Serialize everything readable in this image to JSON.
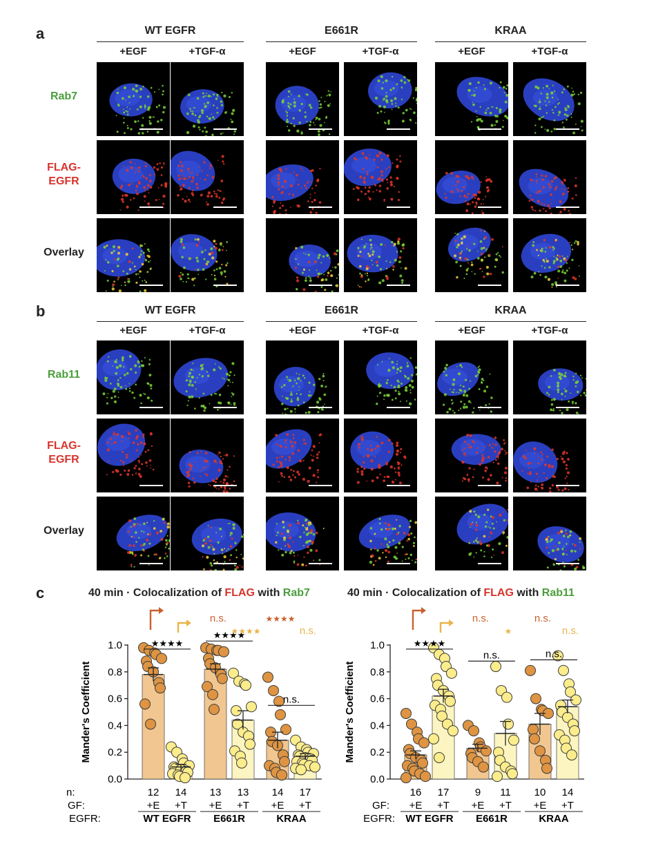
{
  "panels": [
    {
      "letter": "a",
      "groups": [
        "WT EGFR",
        "E661R",
        "KRAA"
      ],
      "conditions": [
        "+EGF",
        "+TGF-α"
      ],
      "rows": [
        {
          "label": "Rab7",
          "color": "#4a9e3b"
        },
        {
          "label": "FLAG-EGFR",
          "color": "#d6342c"
        },
        {
          "label": "Overlay",
          "color": "#222222"
        }
      ]
    },
    {
      "letter": "b",
      "groups": [
        "WT EGFR",
        "E661R",
        "KRAA"
      ],
      "conditions": [
        "+EGF",
        "+TGF-α"
      ],
      "rows": [
        {
          "label": "Rab11",
          "color": "#4a9e3b"
        },
        {
          "label": "FLAG-EGFR",
          "color": "#d6342c"
        },
        {
          "label": "Overlay",
          "color": "#222222"
        }
      ]
    }
  ],
  "panel_c": {
    "letter": "c",
    "row_labels": {
      "n": "n:",
      "gf": "GF:",
      "egfr": "EGFR:"
    }
  },
  "chart_data": [
    {
      "type": "bar",
      "title": {
        "prefix": "40 min · Colocalization of ",
        "flag": "FLAG",
        "mid": " with ",
        "rab": "Rab7"
      },
      "ylabel": "Mander's Coefficient",
      "ylim": [
        0,
        1.0
      ],
      "yticks": [
        "0.0",
        "0.2",
        "0.4",
        "0.6",
        "0.8",
        "1.0"
      ],
      "groups": [
        "WT EGFR",
        "E661R",
        "KRAA"
      ],
      "gf": [
        "+E",
        "+T",
        "+E",
        "+T",
        "+E",
        "+T"
      ],
      "n": [
        "12",
        "14",
        "13",
        "13",
        "14",
        "17"
      ],
      "means": [
        0.78,
        0.09,
        0.82,
        0.44,
        0.29,
        0.17
      ],
      "sem": [
        0.05,
        0.02,
        0.04,
        0.07,
        0.06,
        0.02
      ],
      "points": [
        [
          0.98,
          0.96,
          0.94,
          0.93,
          0.9,
          0.88,
          0.84,
          0.8,
          0.72,
          0.68,
          0.56,
          0.41
        ],
        [
          0.24,
          0.2,
          0.15,
          0.12,
          0.1,
          0.09,
          0.08,
          0.07,
          0.06,
          0.05,
          0.04,
          0.03,
          0.02,
          0.01
        ],
        [
          0.98,
          0.97,
          0.96,
          0.96,
          0.95,
          0.9,
          0.86,
          0.83,
          0.78,
          0.75,
          0.69,
          0.63,
          0.52
        ],
        [
          0.79,
          0.73,
          0.71,
          0.7,
          0.54,
          0.51,
          0.41,
          0.35,
          0.32,
          0.26,
          0.21,
          0.17,
          0.12
        ],
        [
          0.76,
          0.66,
          0.58,
          0.48,
          0.37,
          0.35,
          0.28,
          0.25,
          0.18,
          0.13,
          0.1,
          0.08,
          0.05,
          0.03
        ],
        [
          0.29,
          0.24,
          0.22,
          0.2,
          0.19,
          0.18,
          0.17,
          0.16,
          0.15,
          0.14,
          0.13,
          0.12,
          0.11,
          0.1,
          0.09,
          0.08,
          0.07
        ]
      ],
      "colors": [
        "#de9442",
        "#fbec8c",
        "#de9442",
        "#fbec8c",
        "#de9442",
        "#fbec8c"
      ],
      "bar_colors": [
        "#f1c690",
        "#fcf5c1",
        "#f1c690",
        "#fcf5c1",
        "#f1c690",
        "#fcf5c1"
      ],
      "sig_brackets": [
        {
          "from": 0,
          "to": 1,
          "label": "★★★★",
          "y": 0.97
        },
        {
          "from": 2,
          "to": 3,
          "label": "★★★★",
          "y": 1.03
        },
        {
          "from": 4,
          "to": 5,
          "label": "n.s.",
          "y": 0.55
        }
      ],
      "ref_marks": [
        {
          "kind": "arrow",
          "bar": 0,
          "color": "#c8612d"
        },
        {
          "kind": "arrow",
          "bar": 1,
          "color": "#e9b44c"
        },
        {
          "kind": "text",
          "bar": 2,
          "label": "n.s.",
          "color": "#c8612d",
          "row": 0
        },
        {
          "kind": "text",
          "bar": 3,
          "label": "★★★★",
          "color": "#e9b44c",
          "row": 1
        },
        {
          "kind": "text",
          "bar": 4,
          "label": "★★★★",
          "color": "#c8612d",
          "row": 0
        },
        {
          "kind": "text",
          "bar": 5,
          "label": "n.s.",
          "color": "#e9b44c",
          "row": 1
        }
      ]
    },
    {
      "type": "bar",
      "title": {
        "prefix": "40 min · Colocalization of ",
        "flag": "FLAG",
        "mid": " with ",
        "rab": "Rab11"
      },
      "ylabel": "Mander's Coefficient",
      "ylim": [
        0,
        1.0
      ],
      "yticks": [
        "0.0",
        "0.2",
        "0.4",
        "0.6",
        "0.8",
        "1.0"
      ],
      "groups": [
        "WT EGFR",
        "E661R",
        "KRAA"
      ],
      "gf": [
        "+E",
        "+T",
        "+E",
        "+T",
        "+E",
        "+T"
      ],
      "n": [
        "16",
        "17",
        "9",
        "11",
        "10",
        "14"
      ],
      "means": [
        0.18,
        0.62,
        0.23,
        0.34,
        0.41,
        0.54
      ],
      "sem": [
        0.03,
        0.05,
        0.03,
        0.09,
        0.08,
        0.05
      ],
      "points": [
        [
          0.49,
          0.41,
          0.35,
          0.3,
          0.27,
          0.22,
          0.19,
          0.16,
          0.14,
          0.12,
          0.1,
          0.08,
          0.06,
          0.04,
          0.02,
          0.01
        ],
        [
          0.98,
          0.93,
          0.9,
          0.84,
          0.79,
          0.75,
          0.7,
          0.66,
          0.62,
          0.58,
          0.55,
          0.52,
          0.47,
          0.41,
          0.36,
          0.3,
          0.16
        ],
        [
          0.4,
          0.36,
          0.27,
          0.24,
          0.21,
          0.19,
          0.16,
          0.13,
          0.09
        ],
        [
          0.84,
          0.66,
          0.61,
          0.41,
          0.29,
          0.2,
          0.14,
          0.09,
          0.06,
          0.04,
          0.02
        ],
        [
          0.81,
          0.6,
          0.52,
          0.51,
          0.49,
          0.37,
          0.3,
          0.21,
          0.14,
          0.08
        ],
        [
          0.92,
          0.81,
          0.71,
          0.65,
          0.59,
          0.55,
          0.5,
          0.46,
          0.41,
          0.36,
          0.33,
          0.29,
          0.23,
          0.18
        ]
      ],
      "colors": [
        "#de9442",
        "#fbec8c",
        "#de9442",
        "#fbec8c",
        "#de9442",
        "#fbec8c"
      ],
      "bar_colors": [
        "#f1c690",
        "#fcf5c1",
        "#f1c690",
        "#fcf5c1",
        "#f1c690",
        "#fcf5c1"
      ],
      "sig_brackets": [
        {
          "from": 0,
          "to": 1,
          "label": "★★★★",
          "y": 0.97
        },
        {
          "from": 2,
          "to": 3,
          "label": "n.s.",
          "y": 0.88
        },
        {
          "from": 4,
          "to": 5,
          "label": "n.s.",
          "y": 0.89
        }
      ],
      "ref_marks": [
        {
          "kind": "arrow",
          "bar": 0,
          "color": "#c8612d"
        },
        {
          "kind": "arrow",
          "bar": 1,
          "color": "#e9b44c"
        },
        {
          "kind": "text",
          "bar": 2,
          "label": "n.s.",
          "color": "#c8612d",
          "row": 0
        },
        {
          "kind": "text",
          "bar": 3,
          "label": "★",
          "color": "#e9b44c",
          "row": 1
        },
        {
          "kind": "text",
          "bar": 4,
          "label": "n.s.",
          "color": "#c8612d",
          "row": 0
        },
        {
          "kind": "text",
          "bar": 5,
          "label": "n.s.",
          "color": "#e9b44c",
          "row": 1
        }
      ]
    }
  ]
}
